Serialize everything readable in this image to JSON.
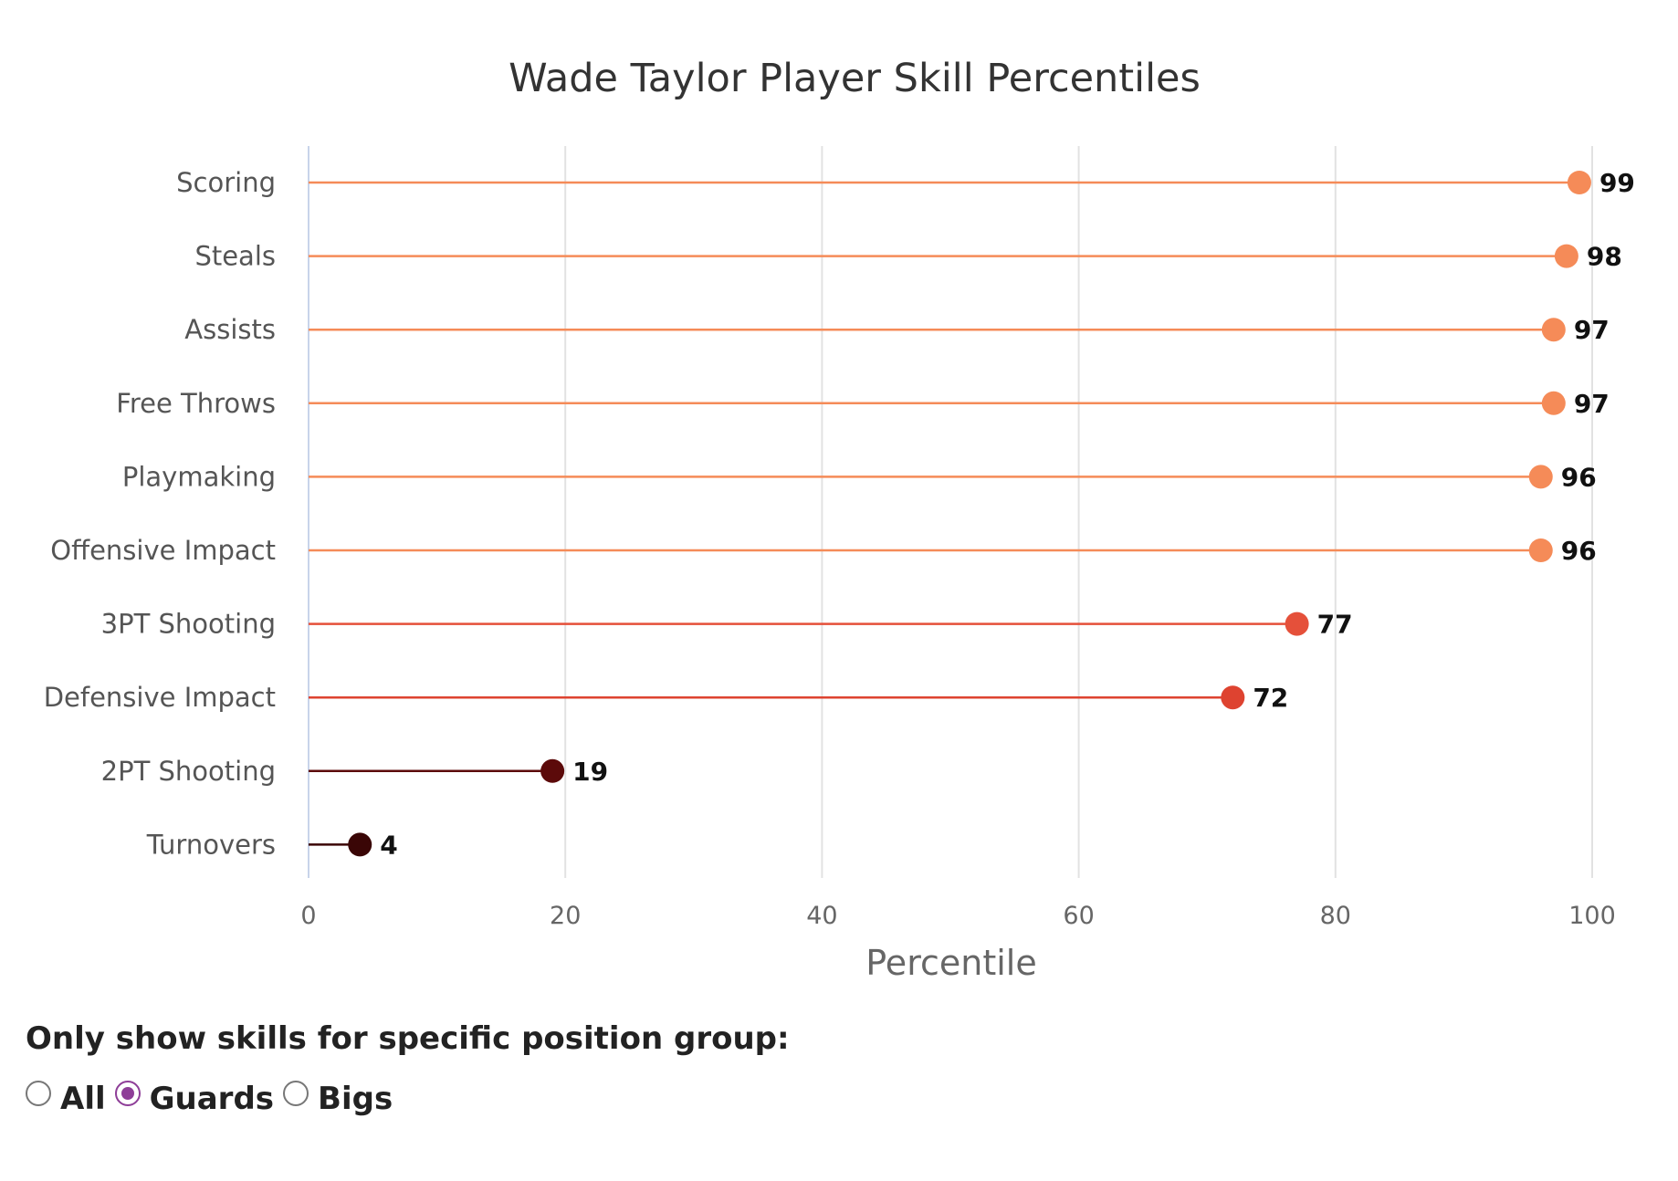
{
  "chart_data": {
    "type": "lollipop",
    "title": "Wade Taylor Player Skill Percentiles",
    "xlabel": "Percentile",
    "ylabel": "",
    "xlim": [
      0,
      100
    ],
    "xticks": [
      "0",
      "20",
      "40",
      "60",
      "80",
      "100"
    ],
    "grid": "vertical",
    "categories": [
      "Scoring",
      "Steals",
      "Assists",
      "Free Throws",
      "Playmaking",
      "Offensive Impact",
      "3PT Shooting",
      "Defensive Impact",
      "2PT Shooting",
      "Turnovers"
    ],
    "values": [
      99,
      98,
      97,
      97,
      96,
      96,
      77,
      72,
      19,
      4
    ],
    "colors": [
      "#f58b58",
      "#f58b58",
      "#f58b58",
      "#f58b58",
      "#f58b58",
      "#f58b58",
      "#e5503a",
      "#de4330",
      "#5c0a0a",
      "#3a0606"
    ]
  },
  "controls": {
    "heading": "Only show skills for specific position group:",
    "options": [
      {
        "label": "All",
        "checked": false
      },
      {
        "label": "Guards",
        "checked": true
      },
      {
        "label": "Bigs",
        "checked": false
      }
    ]
  }
}
